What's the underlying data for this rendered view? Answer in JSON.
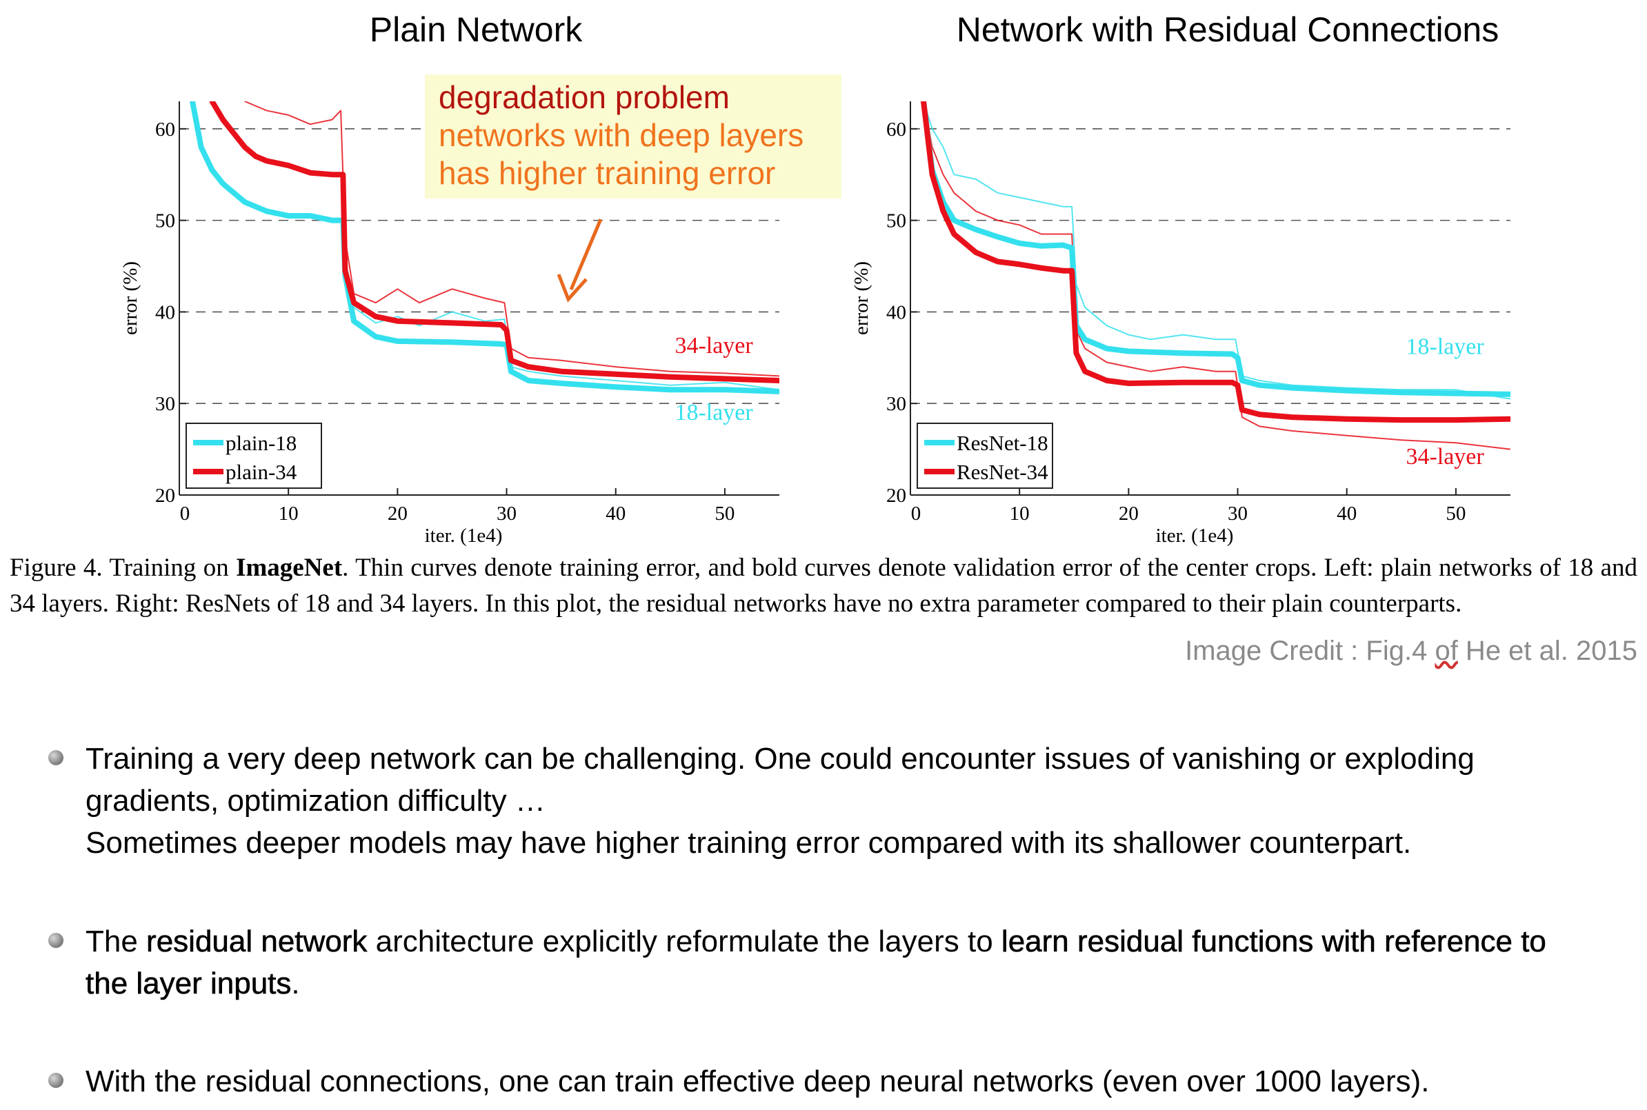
{
  "header": {
    "left_title": "Plain Network",
    "right_title": "Network with Residual Connections"
  },
  "callout": {
    "heading": "degradation problem",
    "line1": "networks with deep layers",
    "line2": "has higher training error"
  },
  "chart_data": [
    {
      "type": "line",
      "title": "Plain Network",
      "xlabel": "iter. (1e4)",
      "ylabel": "error (%)",
      "xlim": [
        0,
        55
      ],
      "ylim": [
        20,
        63
      ],
      "xticks": [
        0,
        10,
        20,
        30,
        40,
        50
      ],
      "yticks": [
        20,
        30,
        40,
        50,
        60
      ],
      "grid": "dashed horizontal at 30, 40, 50, 60",
      "legend_position": "bottom-left",
      "legend": [
        "plain-18",
        "plain-34"
      ],
      "annotations": [
        {
          "text": "34-layer",
          "color": "#e8101a",
          "x": 49,
          "y": 35.5
        },
        {
          "text": "18-layer",
          "color": "#34e0ee",
          "x": 49,
          "y": 28.2
        }
      ],
      "series": [
        {
          "name": "plain-18",
          "kind": "validation",
          "color": "#34e0ee",
          "x": [
            1.2,
            2,
            3,
            4,
            5,
            6,
            8,
            10,
            12,
            14,
            15,
            15.2,
            16,
            18,
            20,
            25,
            29.5,
            30,
            30.4,
            32,
            35,
            40,
            45,
            50,
            55
          ],
          "y": [
            63,
            58,
            55.5,
            54,
            53,
            52,
            51,
            50.5,
            50.5,
            50,
            50,
            44,
            39,
            37.3,
            36.8,
            36.7,
            36.5,
            36.4,
            33.5,
            32.5,
            32.2,
            31.8,
            31.5,
            31.5,
            31.3
          ]
        },
        {
          "name": "plain-34",
          "kind": "validation",
          "color": "#e8101a",
          "x": [
            3,
            4,
            5,
            6,
            7,
            8,
            10,
            12,
            14,
            15,
            15.2,
            16,
            18,
            20,
            25,
            29.5,
            30,
            30.4,
            32,
            35,
            40,
            45,
            50,
            55
          ],
          "y": [
            63,
            61,
            59.5,
            58,
            57,
            56.5,
            56,
            55.2,
            55,
            55,
            44.5,
            41,
            39.5,
            39,
            38.8,
            38.6,
            38,
            34.7,
            34,
            33.5,
            33.2,
            32.9,
            32.7,
            32.5
          ]
        },
        {
          "name": "plain-18 training",
          "kind": "training",
          "color": "#34e0ee",
          "x": [
            15.2,
            16,
            18,
            20,
            22,
            25,
            28,
            29.8,
            30.4,
            32,
            35,
            40,
            45,
            50,
            55
          ],
          "y": [
            46,
            40.5,
            38.8,
            39.5,
            38.5,
            40,
            39,
            39.2,
            34,
            33.5,
            33,
            32.5,
            32,
            32.3,
            31.5
          ]
        },
        {
          "name": "plain-34 training",
          "kind": "training",
          "color": "#e8101a",
          "x": [
            6,
            8,
            10,
            12,
            14,
            14.8,
            15.2,
            16,
            18,
            20,
            22,
            25,
            28,
            29.8,
            30.4,
            32,
            35,
            40,
            45,
            50,
            55
          ],
          "y": [
            63,
            62,
            61.5,
            60.5,
            61,
            62,
            48,
            42,
            41,
            42.5,
            41,
            42.5,
            41.5,
            41,
            36,
            35,
            34.7,
            34,
            33.5,
            33.3,
            33
          ]
        }
      ]
    },
    {
      "type": "line",
      "title": "Network with Residual Connections",
      "xlabel": "iter. (1e4)",
      "ylabel": "error (%)",
      "xlim": [
        0,
        55
      ],
      "ylim": [
        20,
        63
      ],
      "xticks": [
        0,
        10,
        20,
        30,
        40,
        50
      ],
      "yticks": [
        20,
        30,
        40,
        50,
        60
      ],
      "grid": "dashed horizontal at 30, 40, 50, 60",
      "legend_position": "bottom-left",
      "legend": [
        "ResNet-18",
        "ResNet-34"
      ],
      "annotations": [
        {
          "text": "18-layer",
          "color": "#34e0ee",
          "x": 49,
          "y": 35.4
        },
        {
          "text": "34-layer",
          "color": "#e8101a",
          "x": 49,
          "y": 23.4
        }
      ],
      "series": [
        {
          "name": "ResNet-18",
          "kind": "validation",
          "color": "#34e0ee",
          "x": [
            1.2,
            2,
            3,
            4,
            5,
            6,
            8,
            10,
            12,
            14,
            14.8,
            15.2,
            16,
            18,
            20,
            25,
            29.5,
            30,
            30.4,
            32,
            35,
            40,
            45,
            50,
            55
          ],
          "y": [
            63,
            55.5,
            52,
            50,
            49.5,
            49,
            48.2,
            47.5,
            47.2,
            47.3,
            47,
            38.5,
            37,
            36,
            35.7,
            35.5,
            35.4,
            35,
            32.5,
            32,
            31.7,
            31.4,
            31.2,
            31.1,
            31
          ]
        },
        {
          "name": "ResNet-34",
          "kind": "validation",
          "color": "#e8101a",
          "x": [
            1.2,
            2,
            3,
            4,
            5,
            6,
            8,
            10,
            12,
            14,
            14.8,
            15.2,
            16,
            18,
            20,
            25,
            29.5,
            30,
            30.4,
            32,
            35,
            40,
            45,
            50,
            55
          ],
          "y": [
            63,
            55,
            51,
            48.5,
            47.5,
            46.5,
            45.5,
            45.2,
            44.8,
            44.5,
            44.5,
            35.5,
            33.5,
            32.5,
            32.2,
            32.3,
            32.3,
            32,
            29.3,
            28.8,
            28.5,
            28.3,
            28.2,
            28.2,
            28.3
          ]
        },
        {
          "name": "ResNet-18 training",
          "kind": "training",
          "color": "#34e0ee",
          "x": [
            1.2,
            2,
            3,
            4,
            6,
            8,
            10,
            12,
            14,
            14.8,
            15.2,
            16,
            18,
            20,
            22,
            25,
            28,
            29.8,
            30.4,
            32,
            35,
            40,
            45,
            50,
            55
          ],
          "y": [
            63,
            60,
            58,
            55,
            54.5,
            53,
            52.5,
            52,
            51.5,
            51.5,
            43,
            40.5,
            38.5,
            37.5,
            37,
            37.5,
            37,
            37,
            33,
            32.5,
            32,
            31.7,
            31.5,
            31.5,
            30.5
          ]
        },
        {
          "name": "ResNet-34 training",
          "kind": "training",
          "color": "#e8101a",
          "x": [
            1.2,
            2,
            3,
            4,
            6,
            8,
            10,
            12,
            14,
            14.8,
            15.2,
            16,
            18,
            20,
            22,
            25,
            28,
            29.8,
            30.4,
            32,
            35,
            40,
            45,
            50,
            55
          ],
          "y": [
            63,
            58,
            55,
            53,
            51,
            50,
            49.5,
            48.5,
            48.5,
            48.5,
            38,
            36,
            34.5,
            34,
            33.5,
            34,
            33.5,
            33.5,
            28.5,
            27.5,
            27,
            26.5,
            26,
            25.7,
            25
          ]
        }
      ]
    }
  ],
  "caption": {
    "prefix": "Figure 4. Training on ",
    "bold": "ImageNet",
    "text": ". Thin curves denote training error, and bold curves denote validation error of the center crops. Left: plain networks of 18 and 34 layers. Right: ResNets of 18 and 34 layers. In this plot, the residual networks have no extra parameter compared to their plain counterparts."
  },
  "credit": {
    "a": "Image Credit : Fig.4 ",
    "b": "of",
    "c": " He et al. 2015"
  },
  "bullets": {
    "b1": {
      "line1": "Training a very deep network can be challenging. One could encounter issues of vanishing or exploding",
      "line2": "gradients, optimization difficulty …",
      "line3": "Sometimes deeper models may have higher training error compared with its shallower counterpart."
    },
    "b2": {
      "p1": "The ",
      "bold1": "residual network",
      "p2": " architecture explicitly reformulate the layers to ",
      "bold2": "learn residual functions with reference to the layer inputs",
      "p3": "."
    },
    "b3": {
      "text": "With the residual connections, one can train effective deep neural networks (even over 1000 layers)."
    }
  }
}
